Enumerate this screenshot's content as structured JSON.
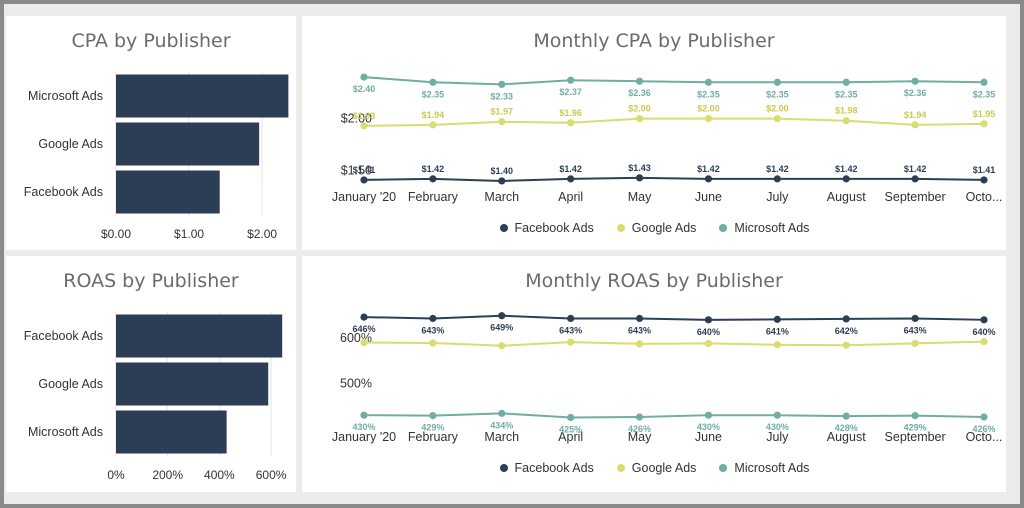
{
  "colors": {
    "facebook": "#2c3e55",
    "google": "#d9dc6e",
    "microsoft": "#6fada5",
    "bar": "#2c3e55"
  },
  "chart_data": [
    {
      "id": "cpa_bar",
      "type": "bar",
      "orientation": "horizontal",
      "title": "CPA by Publisher",
      "categories": [
        "Microsoft Ads",
        "Google Ads",
        "Facebook Ads"
      ],
      "values": [
        2.36,
        1.96,
        1.42
      ],
      "xlim": [
        0,
        2.3
      ],
      "ticks": [
        0,
        1,
        2
      ],
      "tick_labels": [
        "$0.00",
        "$1.00",
        "$2.00"
      ]
    },
    {
      "id": "cpa_line",
      "type": "line",
      "title": "Monthly CPA by Publisher",
      "x": [
        "January '20",
        "February",
        "March",
        "April",
        "May",
        "June",
        "July",
        "August",
        "September",
        "Octo..."
      ],
      "ylim": [
        1.39,
        2.42
      ],
      "y_ticks": [
        1.5,
        2.0
      ],
      "y_tick_labels": [
        "$1.50",
        "$2.00"
      ],
      "series": [
        {
          "name": "Facebook Ads",
          "color": "facebook",
          "values": [
            1.41,
            1.42,
            1.4,
            1.42,
            1.43,
            1.42,
            1.42,
            1.42,
            1.42,
            1.41
          ],
          "labels": [
            "$1.41",
            "$1.42",
            "$1.40",
            "$1.42",
            "$1.43",
            "$1.42",
            "$1.42",
            "$1.42",
            "$1.42",
            "$1.41"
          ]
        },
        {
          "name": "Google Ads",
          "color": "google",
          "values": [
            1.93,
            1.94,
            1.97,
            1.96,
            2.0,
            2.0,
            2.0,
            1.98,
            1.94,
            1.95
          ],
          "labels": [
            "$1.93",
            "$1.94",
            "$1.97",
            "$1.96",
            "$2.00",
            "$2.00",
            "$2.00",
            "$1.98",
            "$1.94",
            "$1.95"
          ]
        },
        {
          "name": "Microsoft Ads",
          "color": "microsoft",
          "values": [
            2.4,
            2.35,
            2.33,
            2.37,
            2.36,
            2.35,
            2.35,
            2.35,
            2.36,
            2.35
          ],
          "labels": [
            "$2.40",
            "$2.35",
            "$2.33",
            "$2.37",
            "$2.36",
            "$2.35",
            "$2.35",
            "$2.35",
            "$2.36",
            "$2.35"
          ]
        }
      ]
    },
    {
      "id": "roas_bar",
      "type": "bar",
      "orientation": "horizontal",
      "title": "ROAS by Publisher",
      "categories": [
        "Facebook Ads",
        "Google Ads",
        "Microsoft Ads"
      ],
      "values": [
        643,
        589,
        428
      ],
      "xlim": [
        0,
        650
      ],
      "ticks": [
        0,
        200,
        400,
        600
      ],
      "tick_labels": [
        "0%",
        "200%",
        "400%",
        "600%"
      ]
    },
    {
      "id": "roas_line",
      "type": "line",
      "title": "Monthly ROAS by Publisher",
      "x": [
        "January '20",
        "February",
        "March",
        "April",
        "May",
        "June",
        "July",
        "August",
        "September",
        "Octo..."
      ],
      "ylim": [
        415,
        655
      ],
      "y_ticks": [
        500,
        600
      ],
      "y_tick_labels": [
        "500%",
        "600%"
      ],
      "series": [
        {
          "name": "Facebook Ads",
          "color": "facebook",
          "values": [
            646,
            643,
            649,
            643,
            643,
            640,
            641,
            642,
            643,
            640
          ],
          "labels": [
            "646%",
            "643%",
            "649%",
            "643%",
            "643%",
            "640%",
            "641%",
            "642%",
            "643%",
            "640%"
          ]
        },
        {
          "name": "Google Ads",
          "color": "google",
          "values": [
            590,
            589,
            583,
            591,
            587,
            588,
            585,
            584,
            588,
            592
          ],
          "labels": []
        },
        {
          "name": "Microsoft Ads",
          "color": "microsoft",
          "values": [
            430,
            429,
            434,
            425,
            426,
            430,
            430,
            428,
            429,
            426
          ],
          "labels": [
            "430%",
            "429%",
            "434%",
            "425%",
            "426%",
            "430%",
            "430%",
            "428%",
            "429%",
            "426%"
          ]
        }
      ]
    }
  ],
  "legend": [
    {
      "name": "Facebook Ads",
      "color": "facebook"
    },
    {
      "name": "Google Ads",
      "color": "google"
    },
    {
      "name": "Microsoft Ads",
      "color": "microsoft"
    }
  ]
}
